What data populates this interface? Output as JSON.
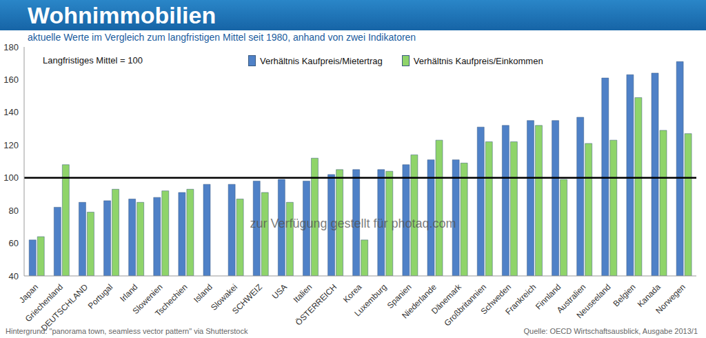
{
  "chart_data": {
    "type": "bar",
    "title": "Wohnimmobilien",
    "subtitle": "aktuelle Werte im Vergleich zum langfristigen Mittel seit 1980, anhand von zwei Indikatoren",
    "categories": [
      "Japan",
      "Griechenland",
      "DEUTSCHLAND",
      "Portugal",
      "Irland",
      "Slowenien",
      "Tschechien",
      "Island",
      "Slowakei",
      "SCHWEIZ",
      "USA",
      "Italien",
      "ÖSTERREICH",
      "Korea",
      "Luxemburg",
      "Spanien",
      "Niederlande",
      "Dänemark",
      "Großbritannien",
      "Schweden",
      "Frankreich",
      "Finnland",
      "Australien",
      "Neuseeland",
      "Belgien",
      "Kanada",
      "Norwegen"
    ],
    "series": [
      {
        "name": "Verhältnis Kaufpreis/Mietertrag",
        "color": "#4f81c7",
        "values": [
          62,
          82,
          85,
          86,
          87,
          88,
          91,
          96,
          96,
          98,
          99,
          98,
          102,
          105,
          105,
          108,
          111,
          111,
          131,
          132,
          135,
          135,
          137,
          161,
          163,
          164,
          171
        ]
      },
      {
        "name": "Verhältnis Kaufpreis/Einkommen",
        "color": "#8fd46a",
        "values": [
          64,
          108,
          79,
          93,
          85,
          92,
          93,
          null,
          87,
          91,
          85,
          112,
          105,
          62,
          104,
          114,
          123,
          109,
          122,
          122,
          132,
          99,
          121,
          123,
          149,
          129,
          127
        ]
      }
    ],
    "ylim": [
      40,
      180
    ],
    "yticks": [
      40,
      60,
      80,
      100,
      120,
      140,
      160,
      180
    ],
    "grid": false,
    "legend": "top",
    "reference_line": 100,
    "annotations": [
      "Langfristiges Mittel = 100",
      "zur Verfügung gestellt für photaq.com",
      "Hintergrund: \"panorama town, seamless vector pattern\" via Shutterstock",
      "Quelle: OECD Wirtschaftsausblick, Ausgabe 2013/1"
    ]
  }
}
